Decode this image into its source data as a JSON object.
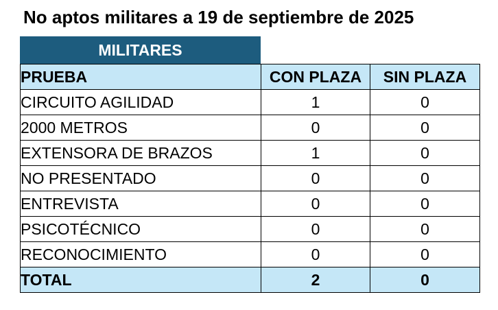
{
  "title": "No aptos militares a 19 de septiembre de 2025",
  "section": "MILITARES",
  "columns": [
    "PRUEBA",
    "CON PLAZA",
    "SIN PLAZA"
  ],
  "rows": [
    {
      "prueba": "CIRCUITO AGILIDAD",
      "con_plaza": "1",
      "sin_plaza": "0"
    },
    {
      "prueba": "2000 METROS",
      "con_plaza": "0",
      "sin_plaza": "0"
    },
    {
      "prueba": "EXTENSORA DE BRAZOS",
      "con_plaza": "1",
      "sin_plaza": "0"
    },
    {
      "prueba": "NO PRESENTADO",
      "con_plaza": "0",
      "sin_plaza": "0"
    },
    {
      "prueba": "ENTREVISTA",
      "con_plaza": "0",
      "sin_plaza": "0"
    },
    {
      "prueba": "PSICOTÉCNICO",
      "con_plaza": "0",
      "sin_plaza": "0"
    },
    {
      "prueba": "RECONOCIMIENTO",
      "con_plaza": "0",
      "sin_plaza": "0"
    }
  ],
  "total": {
    "label": "TOTAL",
    "con_plaza": "2",
    "sin_plaza": "0"
  },
  "colors": {
    "section_header_bg": "#1d5c7e",
    "header_row_bg": "#c5e7f7",
    "total_row_bg": "#c5e7f7"
  }
}
